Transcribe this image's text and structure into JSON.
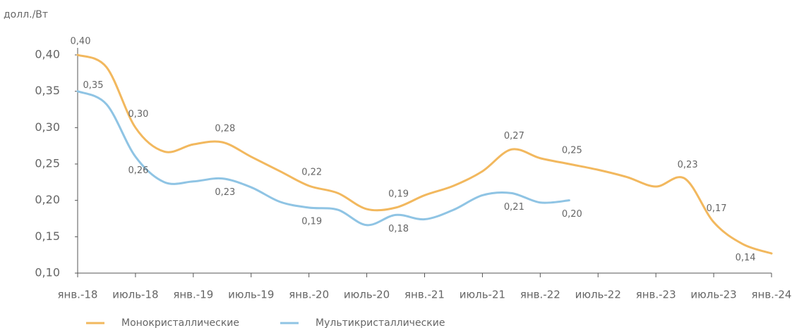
{
  "chart_data": {
    "type": "line",
    "y_label": "долл./Вт",
    "categories": [
      "янв.-18",
      null,
      "июль-18",
      null,
      "янв.-19",
      null,
      "июль-19",
      null,
      "янв.-20",
      null,
      "июль-20",
      null,
      "янв.-21",
      null,
      "июль-21",
      null,
      "янв.-22",
      null,
      "июль-22",
      null,
      "янв.-23",
      null,
      "июль-23",
      null,
      "янв.-24"
    ],
    "series": [
      {
        "name": "Монокристаллические",
        "color": "#f2b85e",
        "values": [
          0.4,
          0.383,
          0.3,
          0.267,
          0.277,
          0.28,
          0.26,
          0.24,
          0.22,
          0.21,
          0.188,
          0.19,
          0.207,
          0.22,
          0.24,
          0.27,
          0.258,
          0.25,
          0.242,
          0.232,
          0.219,
          0.23,
          0.17,
          0.14,
          0.127
        ],
        "value_labels": [
          "0,40",
          null,
          "0,30",
          null,
          null,
          "0,28",
          null,
          null,
          "0,22",
          null,
          null,
          "0,19",
          null,
          null,
          null,
          "0,27",
          null,
          "0,25",
          null,
          null,
          null,
          "0,23",
          "0,17",
          "0,14",
          null
        ]
      },
      {
        "name": "Мультикристаллические",
        "color": "#8fc4e4",
        "values": [
          0.35,
          0.332,
          0.26,
          0.225,
          0.226,
          0.23,
          0.218,
          0.198,
          0.19,
          0.187,
          0.166,
          0.18,
          0.174,
          0.187,
          0.207,
          0.21,
          0.197,
          0.2,
          null,
          null,
          null,
          null,
          null,
          null,
          null
        ],
        "value_labels": [
          "0,35",
          null,
          "0,26",
          null,
          null,
          "0,23",
          null,
          null,
          "0,19",
          null,
          null,
          "0,18",
          null,
          null,
          null,
          "0,21",
          null,
          "0,20",
          null,
          null,
          null,
          null,
          null,
          null,
          null
        ]
      }
    ],
    "ylim": [
      0.1,
      0.4
    ],
    "yticks": [
      {
        "value": 0.1,
        "label": "0,10"
      },
      {
        "value": 0.15,
        "label": "0,15"
      },
      {
        "value": 0.2,
        "label": "0,20"
      },
      {
        "value": 0.25,
        "label": "0,25"
      },
      {
        "value": 0.3,
        "label": "0,30"
      },
      {
        "value": 0.35,
        "label": "0,35"
      },
      {
        "value": 0.4,
        "label": "0,40"
      }
    ],
    "grid": false,
    "legend": "bottom"
  }
}
